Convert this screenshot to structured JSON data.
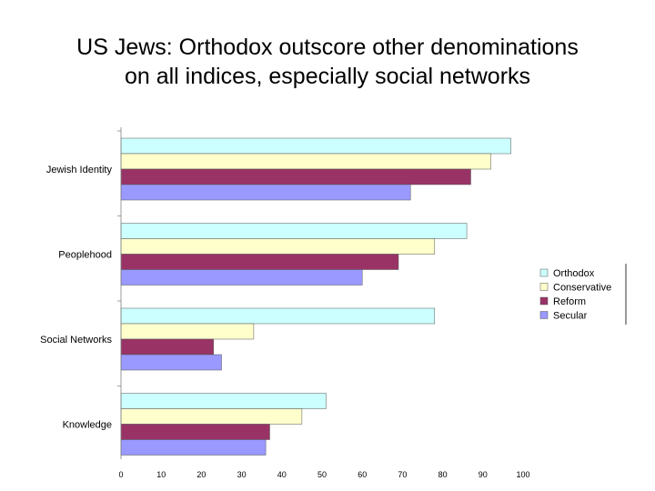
{
  "chart_data": {
    "type": "bar",
    "orientation": "horizontal",
    "title_lines": [
      "US Jews: Orthodox outscore other denominations",
      "on all indices, especially social networks"
    ],
    "categories": [
      "Jewish Identity",
      "Peoplehood",
      "Social Networks",
      "Knowledge"
    ],
    "series": [
      {
        "name": "Orthodox",
        "color": "#ccffff",
        "values": [
          97,
          86,
          78,
          51
        ]
      },
      {
        "name": "Conservative",
        "color": "#ffffcc",
        "values": [
          92,
          78,
          33,
          45
        ]
      },
      {
        "name": "Reform",
        "color": "#993366",
        "values": [
          87,
          69,
          23,
          37
        ]
      },
      {
        "name": "Secular",
        "color": "#9999ff",
        "values": [
          72,
          60,
          25,
          36
        ]
      }
    ],
    "xlim": [
      0,
      100
    ],
    "xticks": [
      0,
      10,
      20,
      30,
      40,
      50,
      60,
      70,
      80,
      90,
      100
    ],
    "xlabel": "",
    "ylabel": "",
    "grid": false,
    "legend_position": "right"
  }
}
